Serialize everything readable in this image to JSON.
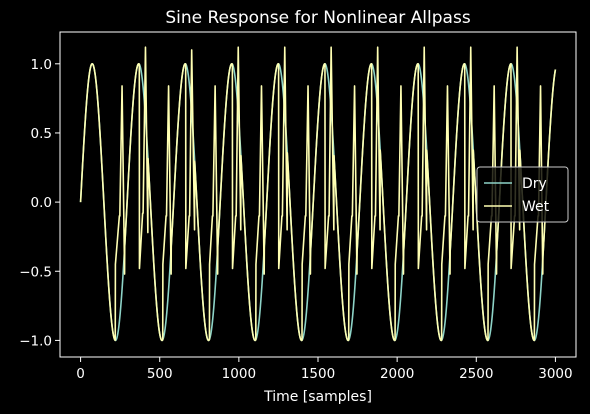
{
  "chart_data": {
    "type": "line",
    "title": "Sine Response for Nonlinear Allpass",
    "xlabel": "Time [samples]",
    "ylabel": "",
    "xlim": [
      -130,
      3130
    ],
    "ylim": [
      -1.12,
      1.23
    ],
    "x_ticks": [
      0,
      500,
      1000,
      1500,
      2000,
      2500,
      3000
    ],
    "y_ticks": [
      -1.0,
      -0.5,
      0.0,
      0.5,
      1.0
    ],
    "x_tick_labels": [
      "0",
      "500",
      "1000",
      "1500",
      "2000",
      "2500",
      "3000"
    ],
    "y_tick_labels": [
      "−1.0",
      "−0.5",
      "0.0",
      "0.5",
      "1.0"
    ],
    "grid": false,
    "legend_position": "center-right",
    "background": "#000000",
    "series": [
      {
        "name": "Dry",
        "color": "#8dd3c7",
        "function": "sine",
        "amplitude": 1.0,
        "period_samples": 294,
        "x_start": 0,
        "x_end": 3000,
        "num_samples": 3000
      },
      {
        "name": "Wet",
        "color": "#ffffb3",
        "function": "sine-allpass-nonlinear",
        "amplitude": 1.0,
        "period_samples": 294,
        "x_start": 0,
        "x_end": 3000,
        "num_samples": 3000,
        "deviations": [
          {
            "x": [
              220,
              245,
              248,
              262,
              278
            ],
            "y": [
              -0.45,
              -0.1,
              -0.1,
              0.84,
              -0.52
            ]
          },
          {
            "x": [
              372,
              392,
              395,
              410,
              425
            ],
            "y": [
              -0.48,
              -0.08,
              -0.08,
              1.12,
              -0.22
            ]
          },
          {
            "x": [
              520,
              540,
              543,
              556,
              572
            ],
            "y": [
              -0.45,
              -0.1,
              -0.1,
              0.84,
              -0.52
            ]
          },
          {
            "x": [
              665,
              686,
              689,
              702,
              720
            ],
            "y": [
              -0.48,
              -0.1,
              -0.1,
              1.1,
              -0.2
            ]
          },
          {
            "x": [
              815,
              833,
              836,
              850,
              866
            ],
            "y": [
              -0.45,
              -0.1,
              -0.1,
              0.84,
              -0.52
            ]
          },
          {
            "x": [
              960,
              980,
              983,
              996,
              1012
            ],
            "y": [
              -0.48,
              -0.1,
              -0.1,
              1.12,
              -0.2
            ]
          },
          {
            "x": [
              1108,
              1127,
              1130,
              1143,
              1160
            ],
            "y": [
              -0.45,
              -0.1,
              -0.1,
              0.84,
              -0.52
            ]
          },
          {
            "x": [
              1252,
              1272,
              1275,
              1290,
              1305
            ],
            "y": [
              -0.48,
              -0.1,
              -0.1,
              1.12,
              -0.2
            ]
          },
          {
            "x": [
              1400,
              1420,
              1423,
              1437,
              1452
            ],
            "y": [
              -0.45,
              -0.1,
              -0.1,
              0.84,
              -0.52
            ]
          },
          {
            "x": [
              1545,
              1567,
              1570,
              1583,
              1600
            ],
            "y": [
              -0.48,
              -0.1,
              -0.1,
              1.12,
              -0.2
            ]
          },
          {
            "x": [
              1695,
              1714,
              1717,
              1731,
              1746
            ],
            "y": [
              -0.45,
              -0.1,
              -0.1,
              0.84,
              -0.52
            ]
          },
          {
            "x": [
              1840,
              1860,
              1863,
              1877,
              1892
            ],
            "y": [
              -0.48,
              -0.1,
              -0.1,
              1.12,
              -0.2
            ]
          },
          {
            "x": [
              1988,
              2008,
              2011,
              2024,
              2040
            ],
            "y": [
              -0.45,
              -0.1,
              -0.1,
              0.84,
              -0.52
            ]
          },
          {
            "x": [
              2134,
              2155,
              2158,
              2171,
              2186
            ],
            "y": [
              -0.48,
              -0.1,
              -0.1,
              1.12,
              -0.2
            ]
          },
          {
            "x": [
              2282,
              2302,
              2305,
              2318,
              2334
            ],
            "y": [
              -0.45,
              -0.1,
              -0.1,
              0.84,
              -0.52
            ]
          },
          {
            "x": [
              2428,
              2448,
              2451,
              2465,
              2480
            ],
            "y": [
              -0.48,
              -0.1,
              -0.1,
              1.12,
              -0.2
            ]
          },
          {
            "x": [
              2575,
              2596,
              2599,
              2613,
              2628
            ],
            "y": [
              -0.45,
              -0.1,
              -0.1,
              0.84,
              -0.52
            ]
          },
          {
            "x": [
              2720,
              2742,
              2745,
              2758,
              2774
            ],
            "y": [
              -0.48,
              -0.1,
              -0.1,
              1.12,
              -0.2
            ]
          },
          {
            "x": [
              2868,
              2890,
              2893,
              2906,
              2920
            ],
            "y": [
              -0.45,
              -0.1,
              -0.1,
              0.84,
              -0.52
            ]
          }
        ]
      }
    ]
  }
}
